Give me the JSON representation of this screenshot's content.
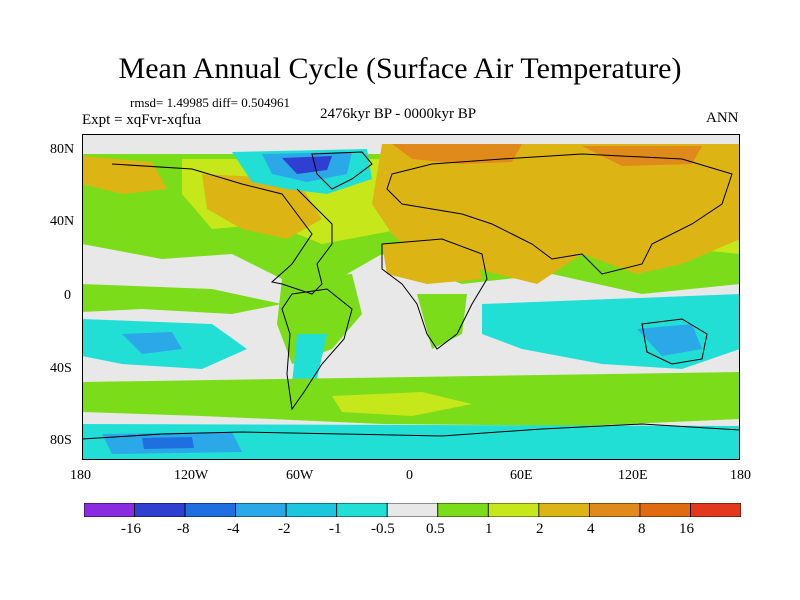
{
  "title": "Mean Annual Cycle (Surface Air Temperature)",
  "stats": "rmsd= 1.49985 diff= 0.504961",
  "experiment": "Expt = xqFvr-xqfua",
  "period": "2476kyr BP - 0000kyr BP",
  "season": "ANN",
  "lat_ticks": [
    "80N",
    "40N",
    "0",
    "40S",
    "80S"
  ],
  "lon_ticks": [
    "180",
    "120W",
    "60W",
    "0",
    "60E",
    "120E",
    "180"
  ],
  "colorbar": {
    "labels": [
      "-16",
      "-8",
      "-4",
      "-2",
      "-1",
      "-0.5",
      "0.5",
      "1",
      "2",
      "4",
      "8",
      "16"
    ],
    "colors": [
      "#8a2be2",
      "#2f3fd0",
      "#1f6fe0",
      "#2aa8e8",
      "#1cc6df",
      "#22dfd6",
      "#e8e8e8",
      "#7bdc1a",
      "#c6e81a",
      "#dcb414",
      "#e08a1c",
      "#e06a10",
      "#e2381e"
    ]
  },
  "colors": {
    "neutral": "#e8e8e8",
    "warm_small": "#7bdc1a",
    "warm_mid": "#c6e81a",
    "warm_large": "#dcb414",
    "cool_small": "#22dfd6",
    "cool_mid": "#2aa8e8",
    "cool_large": "#2f3fd0"
  }
}
